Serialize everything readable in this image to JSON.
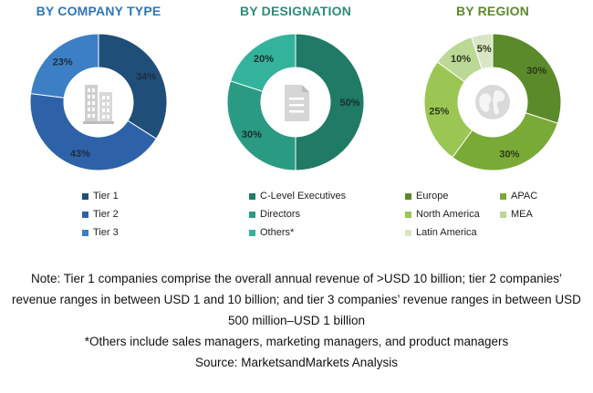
{
  "chart_data": [
    {
      "type": "pie",
      "title": "BY COMPANY TYPE",
      "title_color": "#2e75b6",
      "categories": [
        "Tier 1",
        "Tier 2",
        "Tier 3"
      ],
      "values": [
        34,
        43,
        23
      ],
      "labels": [
        "34%",
        "43%",
        "23%"
      ],
      "colors": [
        "#1f4e79",
        "#2e62a8",
        "#3c7fc4"
      ],
      "label_color": "#1f2d3d",
      "center_icon": "building-icon"
    },
    {
      "type": "pie",
      "title": "BY DESIGNATION",
      "title_color": "#2e8b7a",
      "categories": [
        "C-Level Executives",
        "Directors",
        "Others*"
      ],
      "values": [
        50,
        30,
        20
      ],
      "labels": [
        "50%",
        "30%",
        "20%"
      ],
      "colors": [
        "#1f7a66",
        "#2a9a82",
        "#33b39b"
      ],
      "label_color": "#1a2e2a",
      "center_icon": "document-icon"
    },
    {
      "type": "pie",
      "title": "BY REGION",
      "title_color": "#5c8a2e",
      "categories": [
        "Europe",
        "APAC",
        "North America",
        "MEA",
        "Latin America"
      ],
      "values": [
        30,
        30,
        25,
        10,
        5
      ],
      "labels": [
        "30%",
        "30%",
        "25%",
        "10%",
        "5%"
      ],
      "colors": [
        "#5b8a2a",
        "#7aaa36",
        "#9cc653",
        "#bcd895",
        "#d9e6c6"
      ],
      "label_color": "#2a3a1a",
      "center_icon": "globe-icon"
    }
  ],
  "notes": {
    "line1": "Note: Tier 1 companies comprise the overall annual revenue of >USD 10 billion; tier 2 companies’",
    "line2": "revenue ranges in between USD 1 and 10 billion; and tier 3 companies’ revenue ranges in between USD",
    "line3": "500 million–USD 1 billion",
    "others": "*Others include sales managers, marketing managers, and product managers",
    "source": "Source: MarketsandMarkets Analysis"
  }
}
